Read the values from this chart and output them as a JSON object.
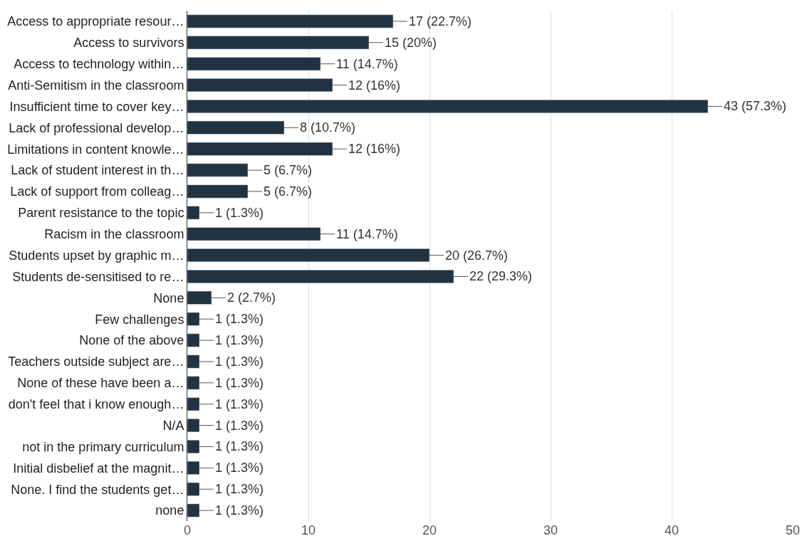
{
  "chart_data": {
    "type": "bar",
    "orientation": "horizontal",
    "categories": [
      "Access to appropriate resour…",
      "Access to survivors",
      "Access to technology within…",
      "Anti-Semitism in the classroom",
      "Insufficient time to cover key…",
      "Lack of professional develop…",
      "Limitations in content knowle…",
      "Lack of student interest in th…",
      "Lack of support from colleag…",
      "Parent resistance to the topic",
      "Racism in the classroom",
      "Students upset by graphic m…",
      "Students de-sensitised to re…",
      "None",
      "Few challenges",
      "None of the above",
      "Teachers outside subject are…",
      "None of these have been a…",
      "don't feel that i know enough…",
      "N/A",
      "not in the primary curriculum",
      "Initial disbelief at the magnit…",
      "None. I find the students get…",
      "none"
    ],
    "values": [
      17,
      15,
      11,
      12,
      43,
      8,
      12,
      5,
      5,
      1,
      11,
      20,
      22,
      2,
      1,
      1,
      1,
      1,
      1,
      1,
      1,
      1,
      1,
      1
    ],
    "value_labels": [
      "17 (22.7%)",
      "15 (20%)",
      "11 (14.7%)",
      "12 (16%)",
      "43 (57.3%)",
      "8 (10.7%)",
      "12 (16%)",
      "5 (6.7%)",
      "5 (6.7%)",
      "1 (1.3%)",
      "11 (14.7%)",
      "20 (26.7%)",
      "22 (29.3%)",
      "2 (2.7%)",
      "1 (1.3%)",
      "1 (1.3%)",
      "1 (1.3%)",
      "1 (1.3%)",
      "1 (1.3%)",
      "1 (1.3%)",
      "1 (1.3%)",
      "1 (1.3%)",
      "1 (1.3%)",
      "1 (1.3%)"
    ],
    "color": "#213343",
    "xlim": [
      0,
      50
    ],
    "xticks": [
      0,
      10,
      20,
      30,
      40,
      50
    ],
    "grid": "x",
    "legend": false
  }
}
